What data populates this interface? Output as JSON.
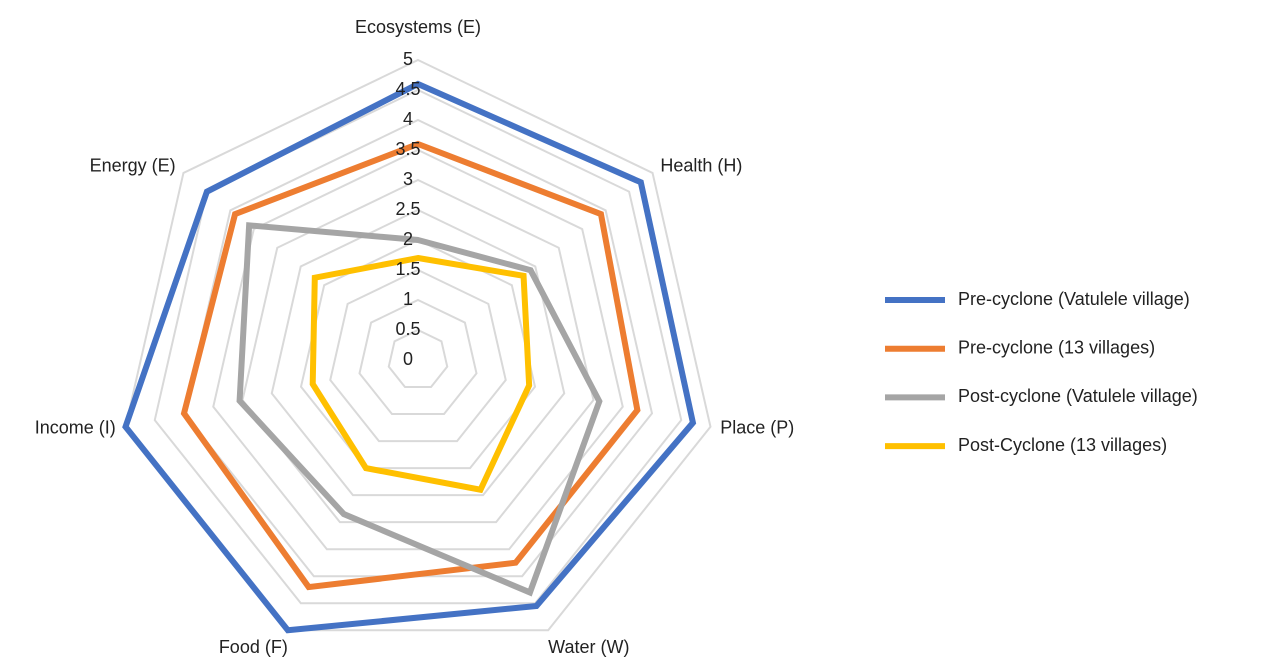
{
  "chart_data": {
    "type": "radar",
    "categories": [
      "Ecosystems (E)",
      "Health (H)",
      "Place (P)",
      "Water (W)",
      "Food (F)",
      "Income (I)",
      "Energy (E)"
    ],
    "series": [
      {
        "name": "Pre-cyclone (Vatulele village)",
        "color": "#4472c4",
        "values": [
          4.6,
          4.75,
          4.7,
          4.55,
          5.0,
          5.0,
          4.5
        ]
      },
      {
        "name": "Pre-cyclone (13 villages)",
        "color": "#ed7d31",
        "values": [
          3.6,
          3.9,
          3.75,
          3.75,
          4.2,
          4.0,
          3.9
        ]
      },
      {
        "name": "Post-cyclone (Vatulele village)",
        "color": "#a5a5a5",
        "values": [
          2.0,
          2.4,
          3.1,
          4.3,
          2.85,
          3.05,
          3.6
        ]
      },
      {
        "name": "Post-Cyclone (13 villages)",
        "color": "#ffc000",
        "values": [
          1.7,
          2.25,
          1.9,
          2.4,
          2.0,
          1.8,
          2.2
        ]
      }
    ],
    "rlim": [
      0,
      5
    ],
    "rticks": [
      0,
      0.5,
      1,
      1.5,
      2,
      2.5,
      3,
      3.5,
      4,
      4.5,
      5
    ],
    "grid": true,
    "legend": "right"
  }
}
